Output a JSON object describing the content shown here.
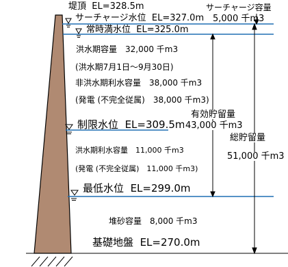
{
  "levels": {
    "crest": {
      "name": "堤頂",
      "value": "EL=328.5m"
    },
    "surcharge": {
      "name": "サーチャージ水位",
      "value": "EL=327.0m"
    },
    "normal_full": {
      "name": "常時満水位",
      "value": "EL=325.0m"
    },
    "restricted": {
      "name": "制限水位",
      "value": "EL=309.5m"
    },
    "minimum": {
      "name": "最低水位",
      "value": "EL=299.0m"
    },
    "foundation": {
      "name": "基礎地盤",
      "value": "EL=270.0m"
    }
  },
  "capacities": {
    "surcharge_header": "サーチャージ容量",
    "surcharge_value": "5,000 千m3",
    "flood_season_capacity": "洪水期容量　32,000 千m3",
    "flood_season_period": "(洪水期7月1日～9月30日)",
    "non_flood_usable": "非洪水期利水容量　38,000 千m3",
    "power_1": "(発電 (不完全従属)　38,000 千m3)",
    "effective_label": "有効貯留量",
    "effective_value": "43,000 千m3",
    "gross_label": "総貯留量",
    "gross_value": "51,000 千m3",
    "flood_season_usable": "洪水期利水容量　11,000 千m3",
    "power_2": "(発電 (不完全従属)　11,000 千m3)",
    "sediment": "堆砂容量　8,000 千m3"
  },
  "colors": {
    "dam": "#b08a72",
    "water_line": "#1f6fb4",
    "outline": "#000000"
  }
}
